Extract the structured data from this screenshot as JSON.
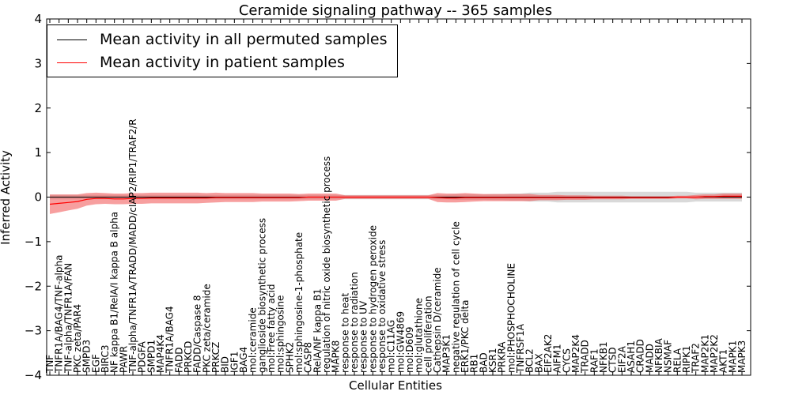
{
  "chart_data": {
    "type": "line",
    "title": "Ceramide signaling pathway -- 365 samples",
    "xlabel": "Cellular Entities",
    "ylabel": "Inferred Activity",
    "ylim": [
      -4,
      4
    ],
    "yticks": [
      -4,
      -3,
      -2,
      -1,
      0,
      1,
      2,
      3,
      4
    ],
    "categories": [
      "TNF",
      "TNFR1A/BAG4/TNF-alpha",
      "TNF-alpha/TNFR1A/FAN",
      "PKC zeta/PAR4",
      "SMPD3",
      "EGF",
      "BIRC3",
      "NF kappa B1/RelA/I kappa B alpha",
      "PAWR",
      "TNF-alpha/TNFR1A/TRADD/MADD/cIAP2/RIP1/TRAF2/R",
      "PDGFA",
      "SMPD1",
      "MAP4K4",
      "TNFR1A/BAG4",
      "FADD",
      "PRKCD",
      "FADD/Caspase 8",
      "PKC zeta/ceramide",
      "PRKCZ",
      "BID",
      "IGF1",
      "BAG4",
      "mol:ceramide",
      "ganglioside biosynthetic process",
      "mol:Free fatty acid",
      "mol:sphingosine",
      "SPHK2",
      "mol:sphingosine-1-phosphate",
      "CASP8",
      "RelA/NF kappa B1",
      "regulation of nitric oxide biosynthetic process",
      "MAPK8",
      "response to heat",
      "response to radiation",
      "response to UV",
      "response to hydrogen peroxide",
      "response to oxidative stress",
      "mol:C11AG",
      "mol:GW4869",
      "mol:D609",
      "mol:glutathione",
      "cell proliferation",
      "Cathepsin D/ceramide",
      "MAP3K1",
      "negative regulation of cell cycle",
      "ERK1/PKC delta",
      "RB1",
      "BAD",
      "KSR1",
      "PRKRA",
      "mol:PHOSPHOCHOLINE",
      "TNFRSF1A",
      "BCL2",
      "BAX",
      "EIF2AK2",
      "AIFM1",
      "CYCS",
      "MAP2K4",
      "TRADD",
      "RAF1",
      "NFKB1",
      "CTSD",
      "EIF2A",
      "ASAH1",
      "CRADD",
      "MADD",
      "NFKBIA",
      "NSMAF",
      "RELA",
      "RIPK1",
      "TRAF2",
      "MAP2K1",
      "MAP2K2",
      "AKT1",
      "MAPK1",
      "MAPK3"
    ],
    "series": [
      {
        "name": "Mean activity in all permuted samples",
        "color": "#000000",
        "values": [
          0.0,
          0.0,
          0.0,
          0.0,
          0.0,
          0.0,
          0.0,
          0.0,
          0.0,
          0.0,
          0.0,
          0.0,
          0.0,
          0.0,
          0.0,
          0.0,
          0.0,
          0.0,
          0.0,
          0.0,
          0.0,
          0.0,
          0.0,
          0.0,
          0.0,
          0.0,
          0.0,
          0.0,
          0.0,
          0.0,
          0.0,
          0.0,
          0.0,
          0.0,
          0.0,
          0.0,
          0.0,
          0.0,
          0.0,
          0.0,
          0.0,
          0.0,
          0.0,
          0.0,
          0.0,
          0.0,
          0.0,
          0.0,
          0.0,
          0.0,
          0.0,
          0.0,
          0.0,
          0.0,
          0.0,
          0.0,
          0.0,
          0.0,
          0.0,
          0.0,
          0.0,
          0.0,
          0.0,
          0.0,
          0.0,
          0.0,
          0.0,
          0.0,
          0.0,
          0.0,
          0.0,
          0.0,
          0.0,
          0.0,
          0.0,
          0.0
        ],
        "band": [
          0.05,
          0.05,
          0.05,
          0.05,
          0.05,
          0.05,
          0.05,
          0.05,
          0.05,
          0.05,
          0.05,
          0.05,
          0.05,
          0.05,
          0.05,
          0.05,
          0.05,
          0.05,
          0.05,
          0.05,
          0.05,
          0.05,
          0.05,
          0.05,
          0.05,
          0.05,
          0.05,
          0.05,
          0.05,
          0.05,
          0.05,
          0.05,
          0.05,
          0.05,
          0.05,
          0.05,
          0.05,
          0.05,
          0.05,
          0.05,
          0.05,
          0.05,
          0.05,
          0.05,
          0.06,
          0.06,
          0.06,
          0.06,
          0.07,
          0.07,
          0.08,
          0.08,
          0.1,
          0.1,
          0.1,
          0.12,
          0.12,
          0.12,
          0.12,
          0.12,
          0.12,
          0.12,
          0.12,
          0.12,
          0.12,
          0.12,
          0.12,
          0.12,
          0.12,
          0.12,
          0.1,
          0.1,
          0.1,
          0.1,
          0.1,
          0.1
        ]
      },
      {
        "name": "Mean activity in patient samples",
        "color": "#ff0000",
        "values": [
          -0.16,
          -0.14,
          -0.12,
          -0.1,
          -0.05,
          -0.03,
          -0.03,
          -0.04,
          -0.04,
          -0.03,
          -0.03,
          -0.02,
          -0.02,
          -0.02,
          -0.02,
          -0.02,
          -0.02,
          -0.02,
          -0.01,
          -0.01,
          -0.01,
          -0.01,
          -0.01,
          -0.01,
          -0.01,
          -0.01,
          -0.01,
          -0.01,
          0.0,
          0.0,
          0.0,
          0.0,
          0.0,
          0.0,
          0.0,
          0.0,
          0.0,
          0.0,
          0.0,
          0.0,
          0.0,
          0.0,
          -0.01,
          -0.02,
          -0.02,
          -0.01,
          -0.01,
          -0.01,
          -0.01,
          -0.01,
          -0.01,
          -0.01,
          -0.01,
          -0.01,
          -0.01,
          -0.01,
          -0.01,
          -0.01,
          -0.01,
          -0.01,
          -0.01,
          -0.01,
          -0.01,
          -0.01,
          -0.01,
          -0.01,
          -0.01,
          -0.01,
          0.0,
          0.0,
          0.0,
          0.01,
          0.01,
          0.02,
          0.02,
          0.02
        ],
        "band": [
          0.22,
          0.2,
          0.18,
          0.16,
          0.14,
          0.13,
          0.12,
          0.12,
          0.12,
          0.12,
          0.12,
          0.12,
          0.12,
          0.12,
          0.12,
          0.12,
          0.12,
          0.11,
          0.11,
          0.1,
          0.1,
          0.1,
          0.1,
          0.09,
          0.09,
          0.09,
          0.09,
          0.08,
          0.08,
          0.08,
          0.08,
          0.08,
          0.04,
          0.04,
          0.04,
          0.04,
          0.04,
          0.04,
          0.04,
          0.04,
          0.04,
          0.04,
          0.1,
          0.1,
          0.1,
          0.1,
          0.09,
          0.08,
          0.08,
          0.08,
          0.08,
          0.08,
          0.08,
          0.06,
          0.06,
          0.06,
          0.05,
          0.05,
          0.05,
          0.04,
          0.04,
          0.04,
          0.04,
          0.03,
          0.03,
          0.03,
          0.03,
          0.03,
          0.03,
          0.03,
          0.05,
          0.05,
          0.05,
          0.06,
          0.06,
          0.06
        ]
      }
    ],
    "legend": {
      "placement": "top-left",
      "entries": [
        "Mean activity in all permuted samples",
        "Mean activity in patient samples"
      ]
    },
    "grid": false
  }
}
